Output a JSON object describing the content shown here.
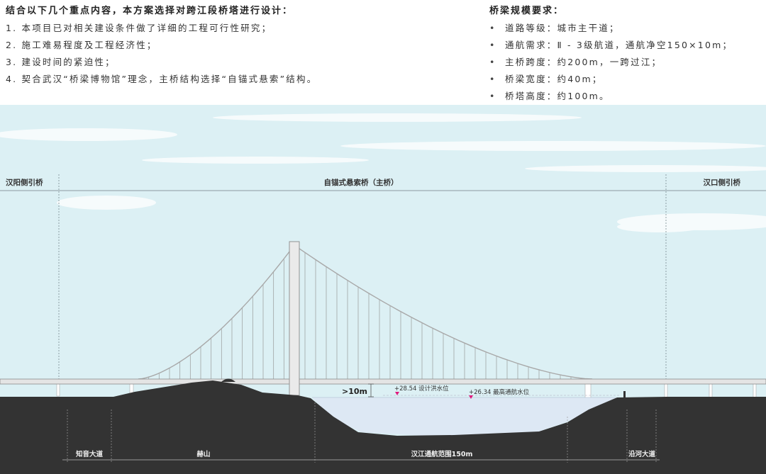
{
  "intro": {
    "heading": "结合以下几个重点内容，本方案选择对跨江段桥塔进行设计：",
    "points": [
      "1. 本项目已对相关建设条件做了详细的工程可行性研究；",
      "2. 施工难易程度及工程经济性；",
      "3. 建设时间的紧迫性；",
      "4. 契合武汉“桥梁博物馆”理念，主桥结构选择“自锚式悬索”结构。"
    ]
  },
  "requirements": {
    "heading": "桥梁规模要求：",
    "bullet": "•",
    "items": [
      "道路等级：城市主干道；",
      "通航需求：Ⅱ - 3级航道，通航净空150×10m；",
      "主桥跨度：约200m，一跨过江；",
      "桥梁宽度：约40m；",
      "桥塔高度：约100m。"
    ]
  },
  "diagram": {
    "left_approach": "汉阳侧引桥",
    "main_bridge": "自锚式悬索桥（主桥）",
    "right_approach": "汉口侧引桥",
    "clearance": ">10m",
    "flood_level": "+28.54 设计洪水位",
    "nav_level": "+26.34 最高通航水位",
    "ground_labels": [
      "知音大道",
      "赫山",
      "汉江通航范围150m",
      "沿河大道"
    ],
    "colors": {
      "sky": "#dcf0f4",
      "ground": "#333333",
      "water": "#dde8f4",
      "marker": "#e0197d"
    }
  }
}
